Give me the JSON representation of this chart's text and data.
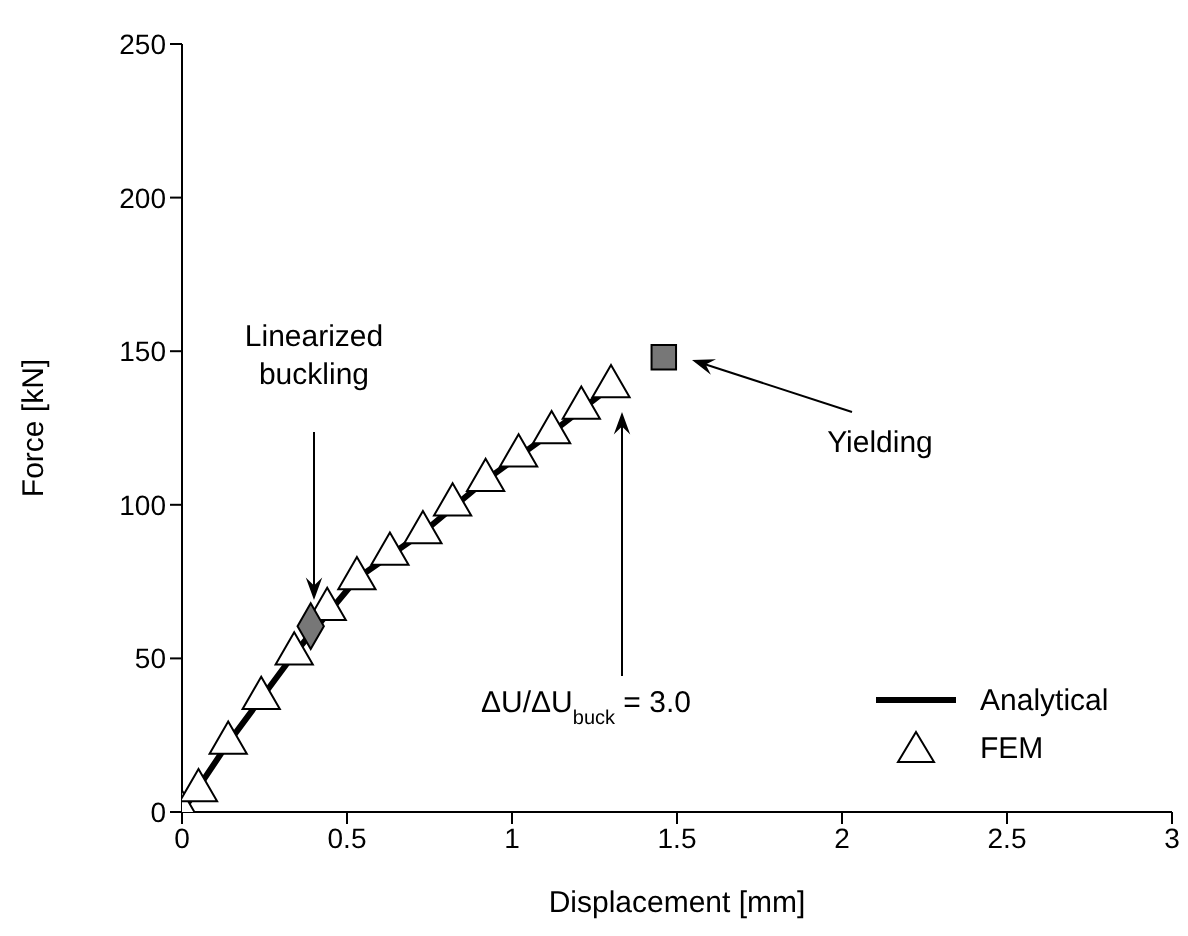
{
  "chart_data": {
    "type": "scatter",
    "xlabel": "Displacement [mm]",
    "ylabel": "Force [kN]",
    "xlim": [
      0,
      3
    ],
    "ylim": [
      0,
      250
    ],
    "xticks": [
      0,
      0.5,
      1,
      1.5,
      2,
      2.5,
      3
    ],
    "yticks": [
      0,
      50,
      100,
      150,
      200,
      250
    ],
    "legend": "bottom right",
    "series": [
      {
        "name": "Analytical",
        "type": "line",
        "color": "#000000",
        "marker": "none",
        "x": [
          0,
          0.14,
          0.34,
          0.53,
          0.73,
          0.92,
          1.12,
          1.3
        ],
        "values": [
          0,
          22.5,
          51.5,
          76,
          91,
          108,
          123.5,
          138.5
        ]
      },
      {
        "name": "FEM",
        "color": "#ffffff",
        "marker": "triangle",
        "x": [
          0,
          0.05,
          0.14,
          0.24,
          0.34,
          0.44,
          0.53,
          0.63,
          0.73,
          0.82,
          0.92,
          1.02,
          1.12,
          1.21,
          1.3
        ],
        "values": [
          0,
          7,
          22.5,
          37,
          51.5,
          66,
          76,
          84,
          91,
          100,
          108,
          116,
          123.5,
          131.5,
          138.5
        ]
      },
      {
        "color": "#777777",
        "marker": "diamond",
        "x": [
          0.39
        ],
        "values": [
          60.5
        ]
      },
      {
        "color": "#777777",
        "marker": "square",
        "x": [
          1.46
        ],
        "values": [
          148
        ]
      }
    ],
    "annotations": [
      "Linearized buckling",
      "Yielding",
      "ΔU/ΔU$_{buck}$ = 3.0"
    ]
  }
}
